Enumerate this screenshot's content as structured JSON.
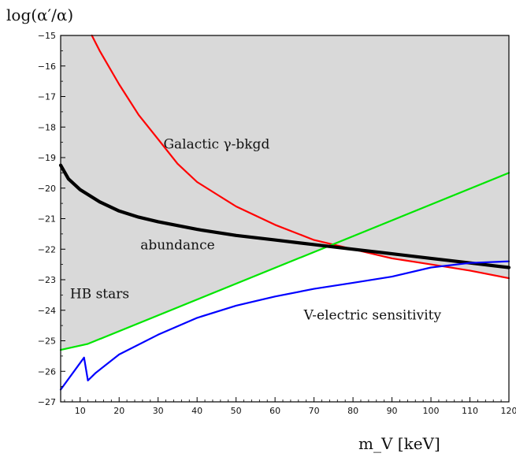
{
  "chart_data": {
    "type": "line",
    "ylabel": "log(α′/α)",
    "xlabel": "m_V [keV]",
    "xlim": [
      5,
      120
    ],
    "ylim": [
      -27,
      -15
    ],
    "x_ticks": [
      10,
      20,
      30,
      40,
      50,
      60,
      70,
      80,
      90,
      100,
      110,
      120
    ],
    "y_ticks": [
      -15,
      -16,
      -17,
      -18,
      -19,
      -20,
      -21,
      -22,
      -23,
      -24,
      -25,
      -26,
      -27
    ],
    "grid": false,
    "shaded_region": {
      "color": "#d9d9d9",
      "description": "excluded region above the union of HB stars (green) and Galactic γ-bkgd (red) curves"
    },
    "series": [
      {
        "color": "#ff0000",
        "x": [
          13,
          15,
          20,
          25,
          30,
          35,
          40,
          45,
          50,
          60,
          70,
          80,
          90,
          100,
          110,
          120
        ],
        "y": [
          -15.0,
          -15.5,
          -16.6,
          -17.6,
          -18.4,
          -19.2,
          -19.8,
          -20.2,
          -20.6,
          -21.2,
          -21.7,
          -22.0,
          -22.3,
          -22.5,
          -22.7,
          -22.95
        ]
      },
      {
        "color": "#00e600",
        "x": [
          5,
          12,
          120
        ],
        "y": [
          -25.3,
          -25.1,
          -19.5
        ]
      },
      {
        "color": "#000000",
        "x": [
          5,
          7,
          10,
          15,
          20,
          25,
          30,
          40,
          50,
          60,
          70,
          80,
          90,
          100,
          110,
          120
        ],
        "y": [
          -19.25,
          -19.7,
          -20.05,
          -20.45,
          -20.75,
          -20.95,
          -21.1,
          -21.35,
          -21.55,
          -21.7,
          -21.85,
          -22.0,
          -22.15,
          -22.3,
          -22.45,
          -22.6
        ]
      },
      {
        "color": "#0000ff",
        "x": [
          5,
          11,
          12,
          14,
          20,
          30,
          40,
          50,
          60,
          70,
          80,
          90,
          100,
          110,
          120
        ],
        "y": [
          -26.6,
          -25.55,
          -26.3,
          -26.05,
          -25.45,
          -24.8,
          -24.25,
          -23.85,
          -23.55,
          -23.3,
          -23.1,
          -22.9,
          -22.6,
          -22.45,
          -22.4
        ]
      }
    ],
    "annotations": [
      {
        "text": "Galactic γ-bkgd",
        "x": 45,
        "y": -18.7
      },
      {
        "text": "abundance",
        "x": 35,
        "y": -22.0
      },
      {
        "text": "HB stars",
        "x": 15,
        "y": -23.6
      },
      {
        "text": "V-electric sensitivity",
        "x": 85,
        "y": -24.3
      }
    ]
  }
}
